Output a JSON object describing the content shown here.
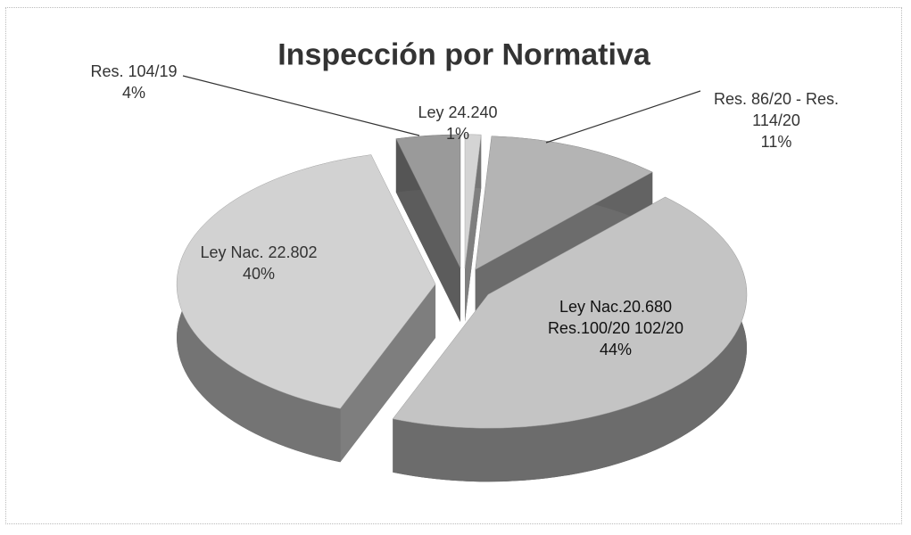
{
  "chart_data": {
    "type": "pie3d",
    "title": "Inspección por Normativa",
    "categories": [
      "Ley 24.240",
      "Res. 86/20 - Res. 114/20",
      "Ley Nac.20.680 Res.100/20 102/20",
      "Ley Nac. 22.802",
      "Res. 104/19"
    ],
    "values": [
      1,
      11,
      44,
      40,
      4
    ],
    "value_labels": [
      "1%",
      "11%",
      "44%",
      "40%",
      "4%"
    ],
    "colors": [
      "#d4d4d4",
      "#b4b4b4",
      "#c4c4c4",
      "#d2d2d2",
      "#9a9a9a"
    ]
  }
}
